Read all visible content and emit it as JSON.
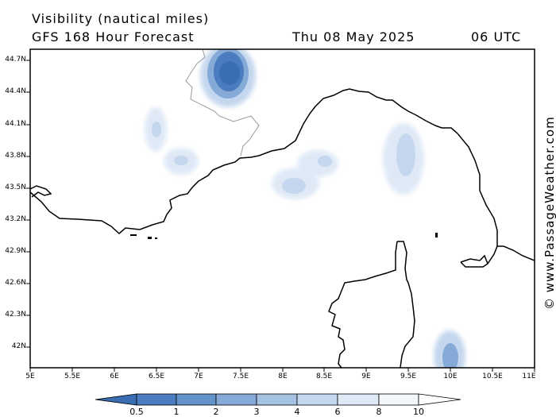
{
  "header": {
    "title": "Visibility (nautical miles)",
    "subtitle": "GFS 168 Hour Forecast",
    "date": "Thu 08 May 2025",
    "time": "06 UTC"
  },
  "credit": "© www.PassageWeather.com",
  "map": {
    "latitude_labels": [
      "44.7N",
      "44.4N",
      "44.1N",
      "43.8N",
      "43.5N",
      "43.2N",
      "42.9N",
      "42.6N",
      "42.3N",
      "42N"
    ],
    "longitude_labels": [
      "5E",
      "5.5E",
      "6E",
      "6.5E",
      "7E",
      "7.5E",
      "8E",
      "8.5E",
      "9E",
      "9.5E",
      "10E",
      "10.5E",
      "11E"
    ],
    "lat_range": [
      41.8,
      44.8
    ],
    "lon_range": [
      5.0,
      11.0
    ]
  },
  "legend": {
    "labels": [
      "0.5",
      "1",
      "2",
      "3",
      "4",
      "6",
      "8",
      "10"
    ],
    "colors": [
      "#3a6eb2",
      "#4a7cbf",
      "#6492cb",
      "#85aad7",
      "#a6c2e3",
      "#c4d7ee",
      "#dfe9f6",
      "#f3f7fc",
      "#ffffff"
    ]
  }
}
